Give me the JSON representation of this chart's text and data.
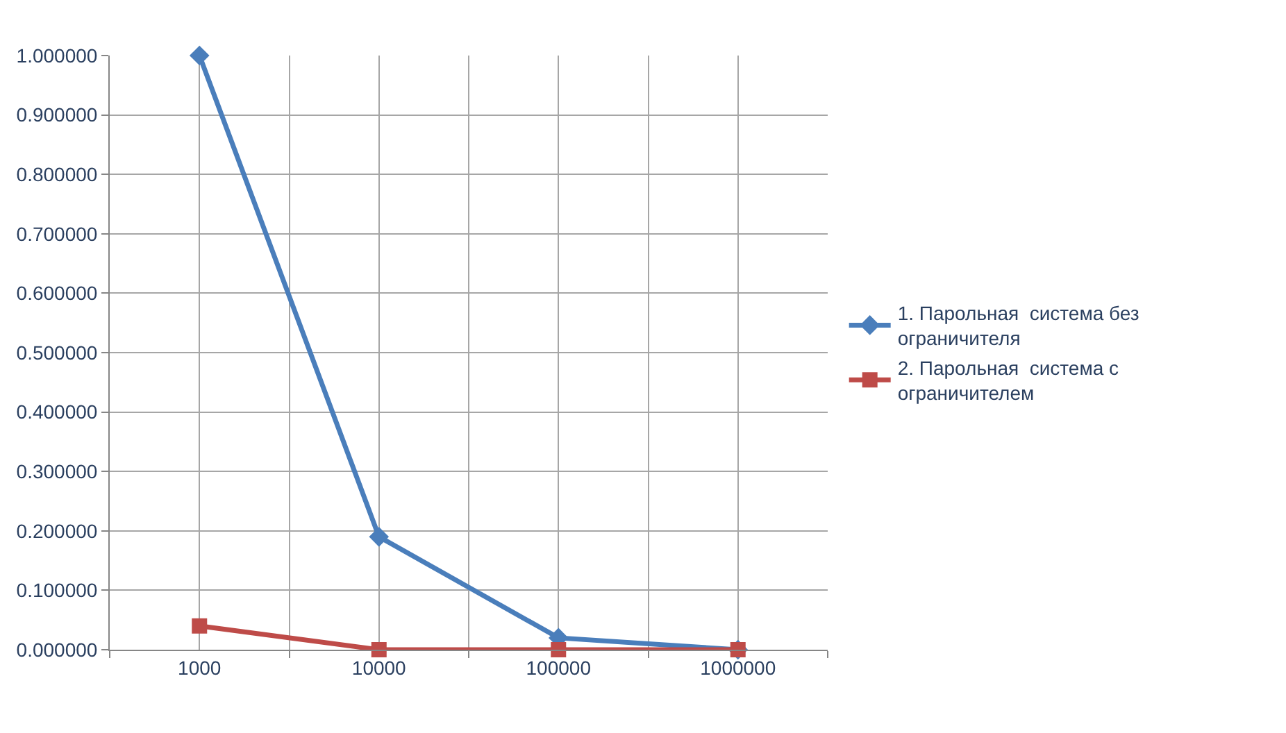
{
  "chart_data": {
    "type": "line",
    "categories": [
      "1000",
      "10000",
      "100000",
      "1000000"
    ],
    "series": [
      {
        "name": "1. Парольная  система без ограничителя",
        "color": "#4a7ebb",
        "marker": "diamond",
        "values": [
          1.0,
          0.19,
          0.02,
          0.0
        ]
      },
      {
        "name": "2. Парольная  система с ограничителем",
        "color": "#be4b48",
        "marker": "square",
        "values": [
          0.04,
          0.0,
          0.0,
          0.0
        ]
      }
    ],
    "ylim": [
      0,
      1
    ],
    "yticks": [
      {
        "value": 0,
        "label": "0.000000"
      },
      {
        "value": 0.1,
        "label": "0.100000"
      },
      {
        "value": 0.2,
        "label": "0.200000"
      },
      {
        "value": 0.3,
        "label": "0.300000"
      },
      {
        "value": 0.4,
        "label": "0.400000"
      },
      {
        "value": 0.5,
        "label": "0.500000"
      },
      {
        "value": 0.6,
        "label": "0.600000"
      },
      {
        "value": 0.7,
        "label": "0.700000"
      },
      {
        "value": 0.8,
        "label": "0.800000"
      },
      {
        "value": 0.9,
        "label": "0.900000"
      },
      {
        "value": 1,
        "label": "1.000000"
      }
    ],
    "grid": true,
    "legend": "right",
    "line_style": "solid"
  }
}
